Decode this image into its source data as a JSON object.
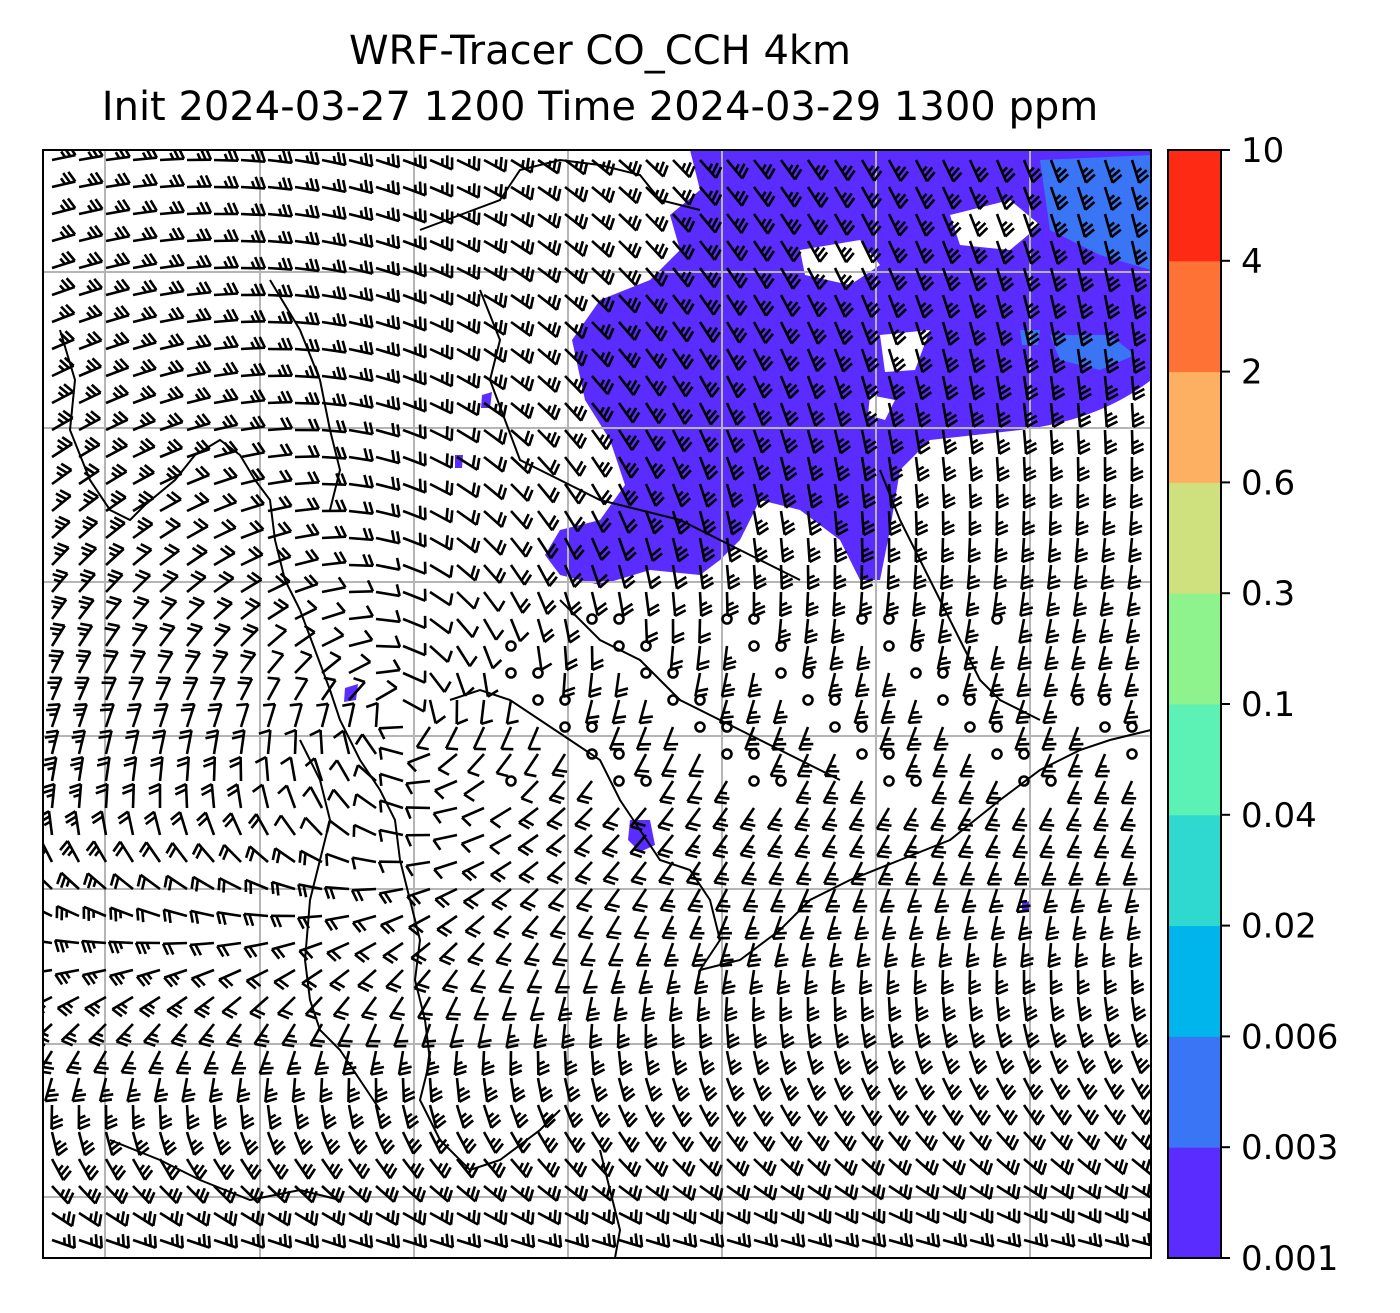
{
  "title": {
    "line1": "WRF-Tracer CO_CCH 4km",
    "line2": "Init 2024-03-27 1200 Time 2024-03-29 1300 ppm"
  },
  "colorbar": {
    "levels": [
      "0.001",
      "0.003",
      "0.006",
      "0.02",
      "0.04",
      "0.1",
      "0.3",
      "0.6",
      "2",
      "4",
      "10"
    ],
    "colors": [
      "#5b2cff",
      "#3a75f5",
      "#00b4ec",
      "#2fd9cf",
      "#5cf2b5",
      "#8ef28d",
      "#cfe07f",
      "#fdb062",
      "#ff7236",
      "#ff2a14"
    ]
  },
  "map": {
    "gridlines": true,
    "overlay": "wind-barbs",
    "coastline_color": "#000000",
    "grid_color": "#b5b5b5"
  }
}
